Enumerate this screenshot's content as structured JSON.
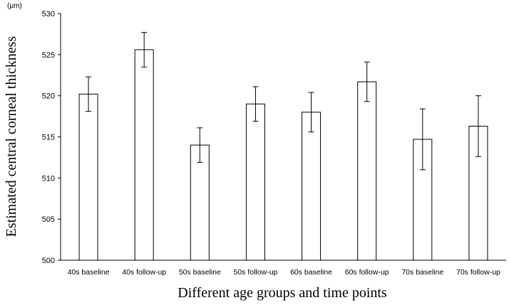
{
  "chart_data": {
    "type": "bar",
    "unit": "(µm)",
    "ylabel": "Estimated central corneal thickness",
    "xlabel": "Different age groups and time points",
    "categories": [
      "40s baseline",
      "40s follow-up",
      "50s baseline",
      "50s follow-up",
      "60s baseline",
      "60s follow-up",
      "70s baseline",
      "70s follow-up"
    ],
    "values": [
      520.2,
      525.6,
      514.0,
      519.0,
      518.0,
      521.7,
      514.7,
      516.3
    ],
    "error_low": [
      518.1,
      523.5,
      511.9,
      516.9,
      515.6,
      519.3,
      511.0,
      512.6
    ],
    "error_high": [
      522.3,
      527.7,
      516.1,
      521.1,
      520.4,
      524.1,
      518.4,
      520.0
    ],
    "ylim": [
      500,
      530
    ],
    "yticks": [
      500,
      505,
      510,
      515,
      520,
      525,
      530
    ],
    "grid": false,
    "bar_fill": "#ffffff",
    "bar_stroke": "#000000"
  }
}
